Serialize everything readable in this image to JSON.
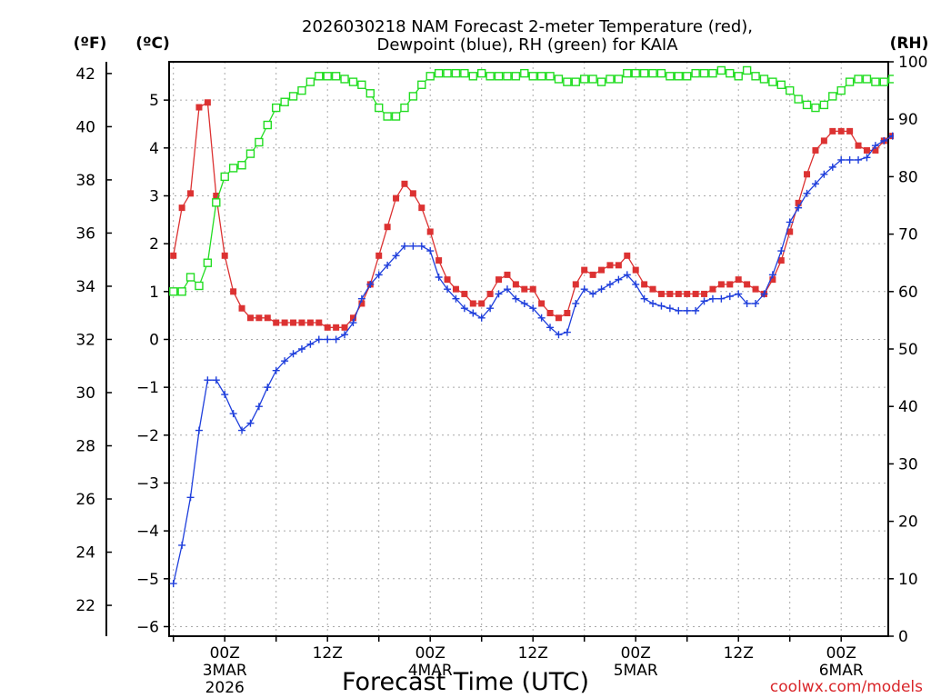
{
  "chart_data": {
    "type": "line",
    "title": "2026030218 NAM Forecast 2-meter Temperature (red),",
    "subtitle": "Dewpoint (blue), RH (green) for KAIA",
    "xlabel": "Forecast Time (UTC)",
    "credit": "coolwx.com/models",
    "unit_f": "(ºF)",
    "unit_c": "(ºC)",
    "unit_rh": "(RH)",
    "x_range_hours": [
      -6.5,
      77.5
    ],
    "celsius_ylim": [
      -6.2,
      5.8
    ],
    "rh_ylim": [
      0,
      100
    ],
    "fahrenheit_ticks": [
      "22",
      "24",
      "26",
      "28",
      "30",
      "32",
      "34",
      "36",
      "38",
      "40",
      "42"
    ],
    "celsius_ticks": [
      "-6",
      "-5",
      "-4",
      "-3",
      "-2",
      "-1",
      "0",
      "1",
      "2",
      "3",
      "4",
      "5"
    ],
    "rh_ticks": [
      "0",
      "10",
      "20",
      "30",
      "40",
      "50",
      "60",
      "70",
      "80",
      "90",
      "100"
    ],
    "x_ticks": [
      {
        "hour": 0,
        "label": "00Z",
        "sub": "3MAR",
        "sub2": "2026"
      },
      {
        "hour": 12,
        "label": "12Z",
        "sub": "",
        "sub2": ""
      },
      {
        "hour": 24,
        "label": "00Z",
        "sub": "4MAR",
        "sub2": ""
      },
      {
        "hour": 36,
        "label": "12Z",
        "sub": "",
        "sub2": ""
      },
      {
        "hour": 48,
        "label": "00Z",
        "sub": "5MAR",
        "sub2": ""
      },
      {
        "hour": 60,
        "label": "12Z",
        "sub": "",
        "sub2": ""
      },
      {
        "hour": 72,
        "label": "00Z",
        "sub": "6MAR",
        "sub2": ""
      }
    ],
    "series": [
      {
        "name": "Temperature (C)",
        "color": "#dc3232",
        "marker": "filled-square",
        "axis": "celsius",
        "points": [
          [
            -6,
            1.75
          ],
          [
            -5,
            2.75
          ],
          [
            -4,
            3.05
          ],
          [
            -3,
            4.85
          ],
          [
            -2,
            4.95
          ],
          [
            -1,
            3.0
          ],
          [
            0,
            1.75
          ],
          [
            1,
            1.0
          ],
          [
            2,
            0.65
          ],
          [
            3,
            0.45
          ],
          [
            4,
            0.45
          ],
          [
            5,
            0.45
          ],
          [
            6,
            0.35
          ],
          [
            7,
            0.35
          ],
          [
            8,
            0.35
          ],
          [
            9,
            0.35
          ],
          [
            10,
            0.35
          ],
          [
            11,
            0.35
          ],
          [
            12,
            0.25
          ],
          [
            13,
            0.25
          ],
          [
            14,
            0.25
          ],
          [
            15,
            0.45
          ],
          [
            16,
            0.75
          ],
          [
            17,
            1.15
          ],
          [
            18,
            1.75
          ],
          [
            19,
            2.35
          ],
          [
            20,
            2.95
          ],
          [
            21,
            3.25
          ],
          [
            22,
            3.05
          ],
          [
            23,
            2.75
          ],
          [
            24,
            2.25
          ],
          [
            25,
            1.65
          ],
          [
            26,
            1.25
          ],
          [
            27,
            1.05
          ],
          [
            28,
            0.95
          ],
          [
            29,
            0.75
          ],
          [
            30,
            0.75
          ],
          [
            31,
            0.95
          ],
          [
            32,
            1.25
          ],
          [
            33,
            1.35
          ],
          [
            34,
            1.15
          ],
          [
            35,
            1.05
          ],
          [
            36,
            1.05
          ],
          [
            37,
            0.75
          ],
          [
            38,
            0.55
          ],
          [
            39,
            0.45
          ],
          [
            40,
            0.55
          ],
          [
            41,
            1.15
          ],
          [
            42,
            1.45
          ],
          [
            43,
            1.35
          ],
          [
            44,
            1.45
          ],
          [
            45,
            1.55
          ],
          [
            46,
            1.55
          ],
          [
            47,
            1.75
          ],
          [
            48,
            1.45
          ],
          [
            49,
            1.15
          ],
          [
            50,
            1.05
          ],
          [
            51,
            0.95
          ],
          [
            52,
            0.95
          ],
          [
            53,
            0.95
          ],
          [
            54,
            0.95
          ],
          [
            55,
            0.95
          ],
          [
            56,
            0.95
          ],
          [
            57,
            1.05
          ],
          [
            58,
            1.15
          ],
          [
            59,
            1.15
          ],
          [
            60,
            1.25
          ],
          [
            61,
            1.15
          ],
          [
            62,
            1.05
          ],
          [
            63,
            0.95
          ],
          [
            64,
            1.25
          ],
          [
            65,
            1.65
          ],
          [
            66,
            2.25
          ],
          [
            67,
            2.85
          ],
          [
            68,
            3.45
          ],
          [
            69,
            3.95
          ],
          [
            70,
            4.15
          ],
          [
            71,
            4.35
          ],
          [
            72,
            4.35
          ],
          [
            73,
            4.35
          ],
          [
            74,
            4.05
          ],
          [
            75,
            3.95
          ],
          [
            76,
            3.95
          ],
          [
            77,
            4.15
          ],
          [
            78,
            4.25
          ],
          [
            79,
            4.35
          ],
          [
            80,
            4.35
          ]
        ]
      },
      {
        "name": "Dewpoint (C)",
        "color": "#1f3fdc",
        "marker": "plus",
        "axis": "celsius",
        "points": [
          [
            -6,
            -5.1
          ],
          [
            -5,
            -4.3
          ],
          [
            -4,
            -3.3
          ],
          [
            -3,
            -1.9
          ],
          [
            -2,
            -0.85
          ],
          [
            -1,
            -0.85
          ],
          [
            0,
            -1.15
          ],
          [
            1,
            -1.55
          ],
          [
            2,
            -1.9
          ],
          [
            3,
            -1.75
          ],
          [
            4,
            -1.4
          ],
          [
            5,
            -1.0
          ],
          [
            6,
            -0.65
          ],
          [
            7,
            -0.45
          ],
          [
            8,
            -0.3
          ],
          [
            9,
            -0.2
          ],
          [
            10,
            -0.1
          ],
          [
            11,
            0.0
          ],
          [
            12,
            0.0
          ],
          [
            13,
            0.0
          ],
          [
            14,
            0.1
          ],
          [
            15,
            0.35
          ],
          [
            16,
            0.85
          ],
          [
            17,
            1.15
          ],
          [
            18,
            1.35
          ],
          [
            19,
            1.55
          ],
          [
            20,
            1.75
          ],
          [
            21,
            1.95
          ],
          [
            22,
            1.95
          ],
          [
            23,
            1.95
          ],
          [
            24,
            1.85
          ],
          [
            25,
            1.3
          ],
          [
            26,
            1.05
          ],
          [
            27,
            0.85
          ],
          [
            28,
            0.65
          ],
          [
            29,
            0.55
          ],
          [
            30,
            0.45
          ],
          [
            31,
            0.65
          ],
          [
            32,
            0.95
          ],
          [
            33,
            1.05
          ],
          [
            34,
            0.85
          ],
          [
            35,
            0.75
          ],
          [
            36,
            0.65
          ],
          [
            37,
            0.45
          ],
          [
            38,
            0.25
          ],
          [
            39,
            0.1
          ],
          [
            40,
            0.15
          ],
          [
            41,
            0.75
          ],
          [
            42,
            1.05
          ],
          [
            43,
            0.95
          ],
          [
            44,
            1.05
          ],
          [
            45,
            1.15
          ],
          [
            46,
            1.25
          ],
          [
            47,
            1.35
          ],
          [
            48,
            1.15
          ],
          [
            49,
            0.85
          ],
          [
            50,
            0.75
          ],
          [
            51,
            0.7
          ],
          [
            52,
            0.65
          ],
          [
            53,
            0.6
          ],
          [
            54,
            0.6
          ],
          [
            55,
            0.6
          ],
          [
            56,
            0.8
          ],
          [
            57,
            0.85
          ],
          [
            58,
            0.85
          ],
          [
            59,
            0.9
          ],
          [
            60,
            0.95
          ],
          [
            61,
            0.75
          ],
          [
            62,
            0.75
          ],
          [
            63,
            0.95
          ],
          [
            64,
            1.35
          ],
          [
            65,
            1.85
          ],
          [
            66,
            2.45
          ],
          [
            67,
            2.75
          ],
          [
            68,
            3.05
          ],
          [
            69,
            3.25
          ],
          [
            70,
            3.45
          ],
          [
            71,
            3.6
          ],
          [
            72,
            3.75
          ],
          [
            73,
            3.75
          ],
          [
            74,
            3.75
          ],
          [
            75,
            3.8
          ],
          [
            76,
            4.05
          ],
          [
            77,
            4.15
          ],
          [
            78,
            4.25
          ],
          [
            79,
            4.3
          ],
          [
            80,
            4.35
          ]
        ]
      },
      {
        "name": "RH (%)",
        "color": "#22dd22",
        "marker": "open-square",
        "axis": "rh",
        "points": [
          [
            -6,
            60
          ],
          [
            -5,
            60
          ],
          [
            -4,
            62.5
          ],
          [
            -3,
            61
          ],
          [
            -2,
            65
          ],
          [
            -1,
            75.5
          ],
          [
            0,
            80
          ],
          [
            1,
            81.5
          ],
          [
            2,
            82
          ],
          [
            3,
            84
          ],
          [
            4,
            86
          ],
          [
            5,
            89
          ],
          [
            6,
            92
          ],
          [
            7,
            93
          ],
          [
            8,
            94
          ],
          [
            9,
            95
          ],
          [
            10,
            96.5
          ],
          [
            11,
            97.5
          ],
          [
            12,
            97.5
          ],
          [
            13,
            97.5
          ],
          [
            14,
            97
          ],
          [
            15,
            96.5
          ],
          [
            16,
            96
          ],
          [
            17,
            94.5
          ],
          [
            18,
            92
          ],
          [
            19,
            90.5
          ],
          [
            20,
            90.5
          ],
          [
            21,
            92
          ],
          [
            22,
            94
          ],
          [
            23,
            96
          ],
          [
            24,
            97.5
          ],
          [
            25,
            98
          ],
          [
            26,
            98
          ],
          [
            27,
            98
          ],
          [
            28,
            98
          ],
          [
            29,
            97.5
          ],
          [
            30,
            98
          ],
          [
            31,
            97.5
          ],
          [
            32,
            97.5
          ],
          [
            33,
            97.5
          ],
          [
            34,
            97.5
          ],
          [
            35,
            98
          ],
          [
            36,
            97.5
          ],
          [
            37,
            97.5
          ],
          [
            38,
            97.5
          ],
          [
            39,
            97
          ],
          [
            40,
            96.5
          ],
          [
            41,
            96.5
          ],
          [
            42,
            97
          ],
          [
            43,
            97
          ],
          [
            44,
            96.5
          ],
          [
            45,
            97
          ],
          [
            46,
            97
          ],
          [
            47,
            98
          ],
          [
            48,
            98
          ],
          [
            49,
            98
          ],
          [
            50,
            98
          ],
          [
            51,
            98
          ],
          [
            52,
            97.5
          ],
          [
            53,
            97.5
          ],
          [
            54,
            97.5
          ],
          [
            55,
            98
          ],
          [
            56,
            98
          ],
          [
            57,
            98
          ],
          [
            58,
            98.5
          ],
          [
            59,
            98
          ],
          [
            60,
            97.5
          ],
          [
            61,
            98.5
          ],
          [
            62,
            97.5
          ],
          [
            63,
            97
          ],
          [
            64,
            96.5
          ],
          [
            65,
            96
          ],
          [
            66,
            95
          ],
          [
            67,
            93.5
          ],
          [
            68,
            92.5
          ],
          [
            69,
            92
          ],
          [
            70,
            92.5
          ],
          [
            71,
            94
          ],
          [
            72,
            95
          ],
          [
            73,
            96.5
          ],
          [
            74,
            97
          ],
          [
            75,
            97
          ],
          [
            76,
            96.5
          ],
          [
            77,
            96.5
          ],
          [
            78,
            97
          ],
          [
            79,
            97.5
          ],
          [
            80,
            98
          ]
        ]
      }
    ]
  }
}
